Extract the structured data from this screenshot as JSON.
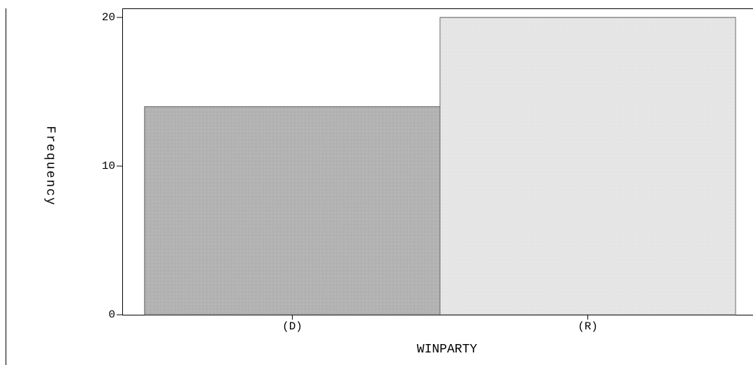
{
  "chart_data": {
    "type": "bar",
    "x_label": "WINPARTY",
    "y_label": "Frequency",
    "categories": [
      "(D)",
      "(R)"
    ],
    "values": [
      14,
      20
    ],
    "colors": [
      "#a9a9a9",
      "#e2e2e2"
    ],
    "ylim": [
      0,
      20.5
    ],
    "yticks": [
      0,
      10,
      20
    ]
  }
}
